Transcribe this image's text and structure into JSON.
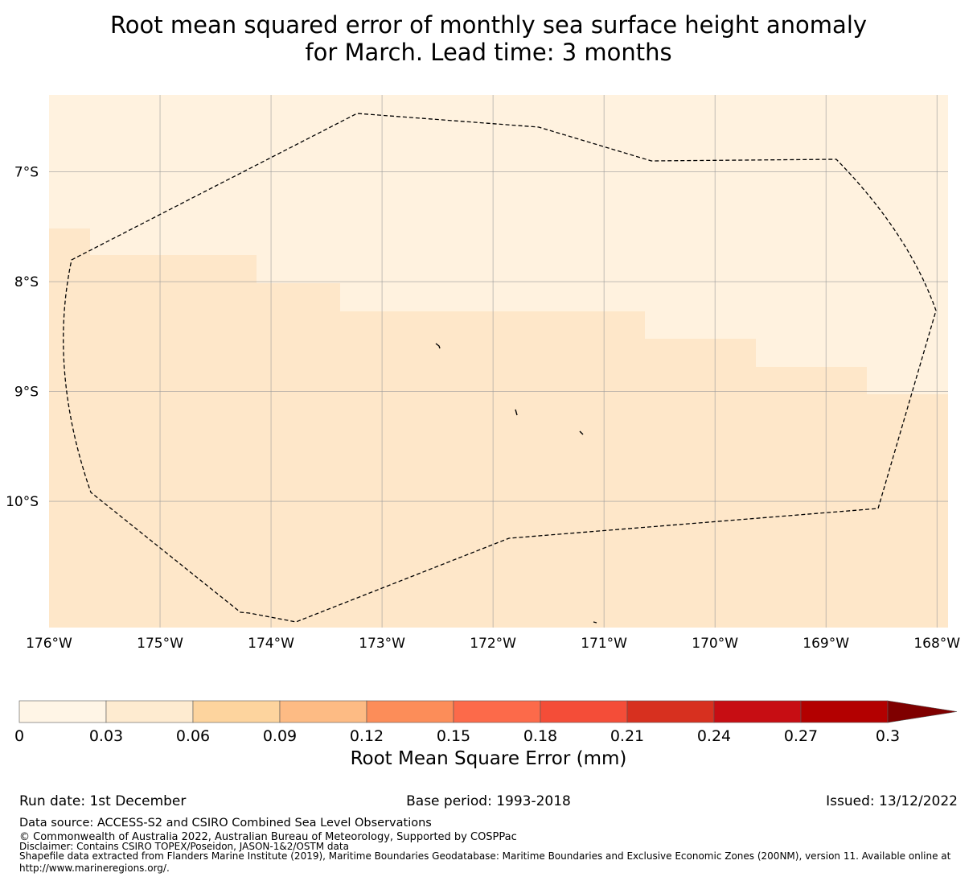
{
  "title_line1": "Root mean squared error of monthly sea surface height anomaly",
  "title_line2": "for March. Lead time: 3 months",
  "map": {
    "lon_range": [
      -176.0,
      -167.9
    ],
    "lat_range": [
      -11.15,
      -6.3
    ],
    "lat_ticks": [
      {
        "value": -7,
        "label": "7°S"
      },
      {
        "value": -8,
        "label": "8°S"
      },
      {
        "value": -9,
        "label": "9°S"
      },
      {
        "value": -10,
        "label": "10°S"
      }
    ],
    "lon_ticks": [
      {
        "value": -176,
        "label": "176°W"
      },
      {
        "value": -175,
        "label": "175°W"
      },
      {
        "value": -174,
        "label": "174°W"
      },
      {
        "value": -173,
        "label": "173°W"
      },
      {
        "value": -172,
        "label": "172°W"
      },
      {
        "value": -171,
        "label": "171°W"
      },
      {
        "value": -170,
        "label": "170°W"
      },
      {
        "value": -169,
        "label": "169°W"
      },
      {
        "value": -168,
        "label": "168°W"
      }
    ],
    "colors": {
      "band_0_003": "#fff2df",
      "band_003_006": "#fee7c9",
      "grid": "#9a9a9a",
      "boundary": "#000000"
    }
  },
  "colorbar": {
    "ticks": [
      "0",
      "0.03",
      "0.06",
      "0.09",
      "0.12",
      "0.15",
      "0.18",
      "0.21",
      "0.24",
      "0.27",
      "0.3"
    ],
    "colors": [
      "#fff5e6",
      "#feebd0",
      "#fdd49e",
      "#fdbb84",
      "#fc8d59",
      "#fc6a4a",
      "#f44d38",
      "#d7301f",
      "#c70d13",
      "#b30000",
      "#7f0000"
    ],
    "label": "Root Mean Square Error (mm)"
  },
  "footer": {
    "run_date": "Run date: 1st December",
    "base_period": "Base period: 1993-2018",
    "issued": "Issued: 13/12/2022",
    "data_source": "Data source: ACCESS-S2 and CSIRO Combined Sea Level Observations",
    "copyright": "© Commonwealth of Australia 2022, Australian Bureau of Meteorology, Supported by COSPPac",
    "disclaimer": "Disclaimer: Contains CSIRO TOPEX/Poseidon, JASON-1&2/OSTM data",
    "shapefile_line1": "Shapefile data extracted from Flanders Marine Institute (2019), Maritime Boundaries Geodatabase: Maritime Boundaries and Exclusive Economic Zones (200NM), version 11. Available online at",
    "shapefile_line2": "http://www.marineregions.org/."
  }
}
